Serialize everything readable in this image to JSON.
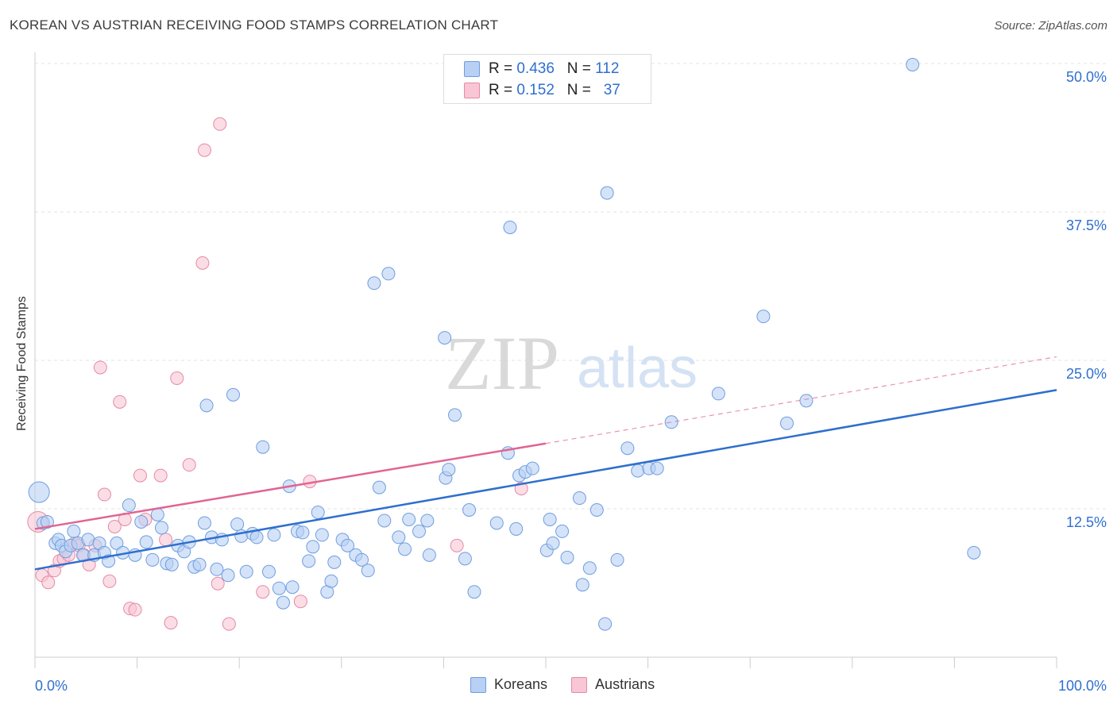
{
  "title": "KOREAN VS AUSTRIAN RECEIVING FOOD STAMPS CORRELATION CHART",
  "source": "Source: ZipAtlas.com",
  "watermark": {
    "zip": "ZIP",
    "atlas": "atlas"
  },
  "colors": {
    "korean_fill": "#b7d0f3",
    "korean_stroke": "#6f9de0",
    "korean_line": "#2e6fce",
    "austrian_fill": "#f8c6d4",
    "austrian_stroke": "#e58aa6",
    "austrian_line": "#e06593",
    "axis_label": "#2f6fcf"
  },
  "legend": {
    "korean": {
      "r_label": "R = ",
      "r": "0.436",
      "n_label": "N = ",
      "n": "112"
    },
    "austrian": {
      "r_label": "R = ",
      "r": "0.152",
      "n_label": "N = ",
      "n": "37"
    }
  },
  "chart_data": {
    "type": "scatter",
    "title": "KOREAN VS AUSTRIAN RECEIVING FOOD STAMPS CORRELATION CHART",
    "xlabel": "",
    "ylabel": "Receiving Food Stamps",
    "xlim": [
      0,
      100
    ],
    "ylim": [
      0,
      50
    ],
    "x_tick_labels": [
      "0.0%",
      "100.0%"
    ],
    "y_tick_labels": [
      "12.5%",
      "25.0%",
      "37.5%",
      "50.0%"
    ],
    "y_ticks": [
      12.5,
      25.0,
      37.5,
      50.0
    ],
    "grid": "horizontal dashed",
    "legend_position": "top-center",
    "series": [
      {
        "name": "Koreans",
        "r": 0.436,
        "n": 112,
        "trend": {
          "x": [
            0,
            100
          ],
          "y": [
            7.4,
            22.5
          ],
          "style": "solid"
        },
        "points": [
          [
            0.4,
            13.9
          ],
          [
            0.8,
            11.3
          ],
          [
            1.2,
            11.4
          ],
          [
            2.0,
            9.6
          ],
          [
            2.3,
            9.9
          ],
          [
            2.6,
            9.4
          ],
          [
            3.0,
            8.9
          ],
          [
            3.5,
            9.4
          ],
          [
            3.8,
            10.6
          ],
          [
            4.2,
            9.6
          ],
          [
            4.7,
            8.6
          ],
          [
            5.2,
            9.9
          ],
          [
            5.8,
            8.6
          ],
          [
            6.3,
            9.6
          ],
          [
            6.8,
            8.8
          ],
          [
            7.2,
            8.1
          ],
          [
            8.0,
            9.6
          ],
          [
            8.6,
            8.8
          ],
          [
            9.2,
            12.8
          ],
          [
            9.8,
            8.6
          ],
          [
            10.4,
            11.4
          ],
          [
            10.9,
            9.7
          ],
          [
            11.5,
            8.2
          ],
          [
            12.0,
            12.0
          ],
          [
            12.4,
            10.9
          ],
          [
            12.9,
            7.9
          ],
          [
            13.4,
            7.8
          ],
          [
            14.0,
            9.4
          ],
          [
            14.6,
            8.9
          ],
          [
            15.1,
            9.7
          ],
          [
            15.6,
            7.6
          ],
          [
            16.1,
            7.8
          ],
          [
            16.6,
            11.3
          ],
          [
            16.8,
            21.2
          ],
          [
            17.3,
            10.1
          ],
          [
            17.8,
            7.4
          ],
          [
            18.3,
            9.9
          ],
          [
            18.9,
            6.9
          ],
          [
            19.4,
            22.1
          ],
          [
            19.8,
            11.2
          ],
          [
            20.2,
            10.2
          ],
          [
            20.7,
            7.2
          ],
          [
            21.3,
            10.4
          ],
          [
            21.7,
            10.1
          ],
          [
            22.3,
            17.7
          ],
          [
            22.9,
            7.2
          ],
          [
            23.4,
            10.3
          ],
          [
            23.9,
            5.8
          ],
          [
            24.3,
            4.6
          ],
          [
            24.9,
            14.4
          ],
          [
            25.2,
            5.9
          ],
          [
            25.7,
            10.6
          ],
          [
            26.2,
            10.5
          ],
          [
            26.8,
            8.1
          ],
          [
            27.2,
            9.3
          ],
          [
            27.7,
            12.2
          ],
          [
            28.1,
            10.3
          ],
          [
            28.6,
            5.5
          ],
          [
            29.0,
            6.4
          ],
          [
            29.3,
            8.0
          ],
          [
            30.1,
            9.9
          ],
          [
            30.6,
            9.4
          ],
          [
            31.4,
            8.6
          ],
          [
            32.0,
            8.2
          ],
          [
            32.6,
            7.3
          ],
          [
            33.2,
            31.5
          ],
          [
            33.7,
            14.3
          ],
          [
            34.2,
            11.5
          ],
          [
            34.6,
            32.3
          ],
          [
            35.6,
            10.1
          ],
          [
            36.2,
            9.1
          ],
          [
            36.6,
            11.6
          ],
          [
            37.6,
            10.6
          ],
          [
            38.4,
            11.5
          ],
          [
            38.6,
            8.6
          ],
          [
            40.1,
            26.9
          ],
          [
            40.2,
            15.1
          ],
          [
            40.5,
            15.8
          ],
          [
            41.1,
            20.4
          ],
          [
            42.1,
            8.3
          ],
          [
            42.5,
            12.4
          ],
          [
            43.0,
            5.5
          ],
          [
            45.2,
            11.3
          ],
          [
            46.3,
            17.2
          ],
          [
            46.5,
            36.2
          ],
          [
            47.1,
            10.8
          ],
          [
            47.4,
            15.3
          ],
          [
            48.0,
            15.6
          ],
          [
            48.7,
            15.9
          ],
          [
            50.1,
            9.0
          ],
          [
            50.4,
            11.6
          ],
          [
            50.7,
            9.6
          ],
          [
            51.6,
            10.6
          ],
          [
            52.1,
            8.4
          ],
          [
            53.3,
            13.4
          ],
          [
            53.6,
            6.1
          ],
          [
            54.3,
            7.5
          ],
          [
            55.0,
            12.4
          ],
          [
            55.8,
            2.8
          ],
          [
            56.0,
            39.1
          ],
          [
            57.0,
            8.2
          ],
          [
            58.0,
            17.6
          ],
          [
            59.0,
            15.7
          ],
          [
            60.1,
            15.9
          ],
          [
            60.9,
            15.9
          ],
          [
            62.3,
            19.8
          ],
          [
            66.9,
            22.2
          ],
          [
            71.3,
            28.7
          ],
          [
            73.6,
            19.7
          ],
          [
            75.5,
            21.6
          ],
          [
            85.9,
            49.9
          ],
          [
            91.9,
            8.8
          ]
        ]
      },
      {
        "name": "Austrians",
        "r": 0.152,
        "n": 37,
        "trend": {
          "x": [
            0,
            50
          ],
          "y": [
            10.8,
            18.0
          ],
          "style": "solid",
          "extension": {
            "x": [
              50,
              100
            ],
            "y": [
              18.0,
              25.3
            ],
            "style": "dashed"
          }
        },
        "points": [
          [
            0.3,
            11.4
          ],
          [
            0.7,
            6.9
          ],
          [
            1.3,
            6.3
          ],
          [
            1.9,
            7.3
          ],
          [
            2.4,
            8.1
          ],
          [
            2.8,
            8.3
          ],
          [
            3.3,
            8.6
          ],
          [
            3.9,
            9.6
          ],
          [
            4.3,
            9.4
          ],
          [
            4.8,
            8.6
          ],
          [
            5.3,
            7.8
          ],
          [
            5.9,
            9.4
          ],
          [
            6.4,
            24.4
          ],
          [
            6.8,
            13.7
          ],
          [
            7.3,
            6.4
          ],
          [
            7.8,
            11.0
          ],
          [
            8.3,
            21.5
          ],
          [
            8.8,
            11.6
          ],
          [
            9.3,
            4.1
          ],
          [
            9.8,
            4.0
          ],
          [
            10.3,
            15.3
          ],
          [
            10.8,
            11.6
          ],
          [
            12.3,
            15.3
          ],
          [
            12.8,
            9.9
          ],
          [
            13.3,
            2.9
          ],
          [
            13.9,
            23.5
          ],
          [
            15.1,
            16.2
          ],
          [
            16.4,
            33.2
          ],
          [
            16.6,
            42.7
          ],
          [
            17.9,
            6.2
          ],
          [
            18.1,
            44.9
          ],
          [
            19.0,
            2.8
          ],
          [
            22.3,
            5.5
          ],
          [
            26.0,
            4.7
          ],
          [
            26.9,
            14.8
          ],
          [
            41.3,
            9.4
          ],
          [
            47.6,
            14.2
          ]
        ]
      }
    ]
  }
}
